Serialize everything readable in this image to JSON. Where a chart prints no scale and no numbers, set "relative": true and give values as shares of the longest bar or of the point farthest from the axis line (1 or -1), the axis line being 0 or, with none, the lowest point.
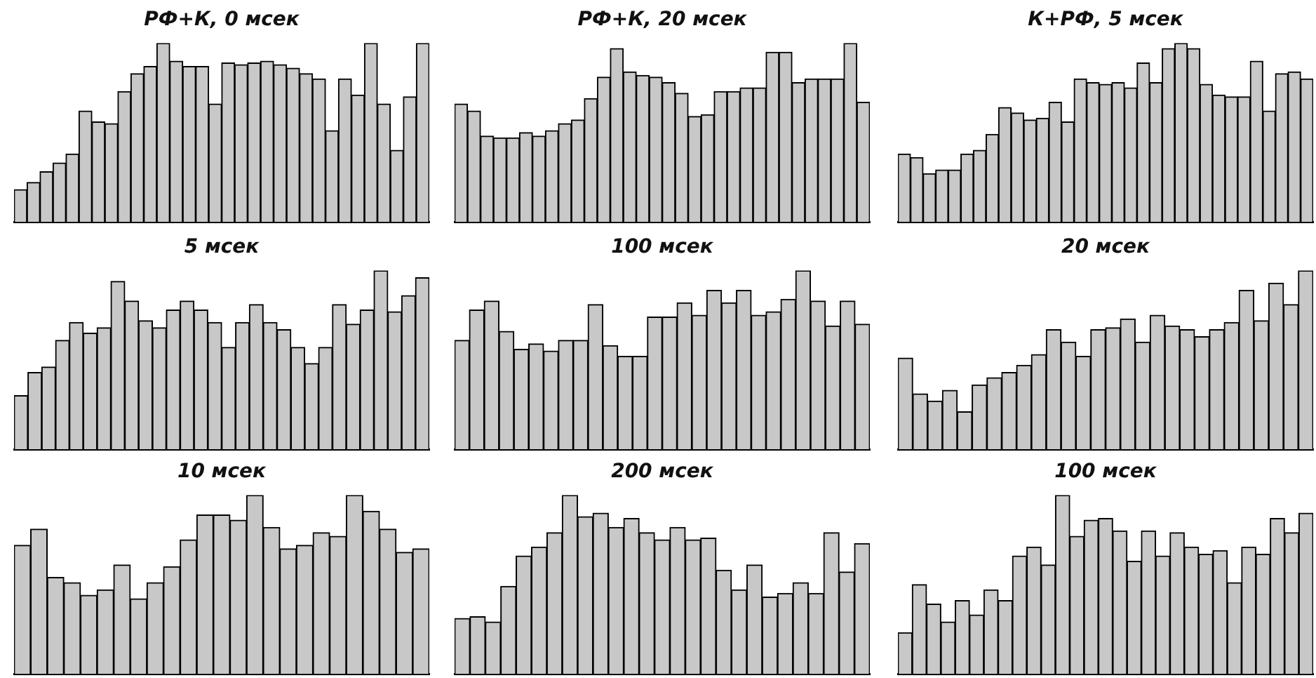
{
  "chart_data": [
    {
      "type": "bar",
      "title": "РФ+К, 0 мсек",
      "relative": true,
      "color": "#c8c8c8",
      "categories": [
        null,
        null,
        null,
        null,
        null,
        null,
        null,
        null,
        null,
        null,
        null,
        null,
        null,
        null,
        null,
        null,
        null,
        null,
        null,
        null,
        null,
        null,
        null,
        null,
        null,
        null,
        null,
        null,
        null,
        null,
        null,
        null
      ],
      "values": [
        0.18,
        0.22,
        0.28,
        0.33,
        0.38,
        0.62,
        0.56,
        0.55,
        0.73,
        0.83,
        0.87,
        1.0,
        0.9,
        0.87,
        0.87,
        0.66,
        0.89,
        0.88,
        0.89,
        0.9,
        0.88,
        0.86,
        0.83,
        0.8,
        0.51,
        0.8,
        0.71,
        1.0,
        0.66,
        0.4,
        0.7,
        1.0
      ]
    },
    {
      "type": "bar",
      "title": "РФ+К, 20 мсек",
      "relative": true,
      "color": "#c8c8c8",
      "categories": [
        null,
        null,
        null,
        null,
        null,
        null,
        null,
        null,
        null,
        null,
        null,
        null,
        null,
        null,
        null,
        null,
        null,
        null,
        null,
        null,
        null,
        null,
        null,
        null,
        null,
        null,
        null,
        null,
        null,
        null,
        null,
        null
      ],
      "values": [
        0.66,
        0.62,
        0.48,
        0.47,
        0.47,
        0.5,
        0.48,
        0.51,
        0.55,
        0.57,
        0.69,
        0.81,
        0.97,
        0.84,
        0.82,
        0.81,
        0.78,
        0.72,
        0.59,
        0.6,
        0.73,
        0.73,
        0.75,
        0.75,
        0.95,
        0.95,
        0.78,
        0.8,
        0.8,
        0.8,
        1.0,
        0.67
      ]
    },
    {
      "type": "bar",
      "title": "К+РФ, 5 мсек",
      "relative": true,
      "color": "#c8c8c8",
      "categories": [
        null,
        null,
        null,
        null,
        null,
        null,
        null,
        null,
        null,
        null,
        null,
        null,
        null,
        null,
        null,
        null,
        null,
        null,
        null,
        null,
        null,
        null,
        null,
        null,
        null,
        null,
        null,
        null,
        null,
        null,
        null,
        null,
        null
      ],
      "values": [
        0.38,
        0.36,
        0.27,
        0.29,
        0.29,
        0.38,
        0.4,
        0.49,
        0.64,
        0.61,
        0.57,
        0.58,
        0.67,
        0.56,
        0.8,
        0.78,
        0.77,
        0.78,
        0.75,
        0.89,
        0.78,
        0.97,
        1.0,
        0.97,
        0.77,
        0.71,
        0.7,
        0.7,
        0.9,
        0.62,
        0.83,
        0.84,
        0.8
      ]
    },
    {
      "type": "bar",
      "title": "5 мсек",
      "relative": true,
      "color": "#c8c8c8",
      "categories": [
        null,
        null,
        null,
        null,
        null,
        null,
        null,
        null,
        null,
        null,
        null,
        null,
        null,
        null,
        null,
        null,
        null,
        null,
        null,
        null,
        null,
        null,
        null,
        null,
        null,
        null,
        null,
        null,
        null,
        null
      ],
      "values": [
        0.3,
        0.43,
        0.46,
        0.61,
        0.71,
        0.65,
        0.68,
        0.94,
        0.83,
        0.72,
        0.68,
        0.78,
        0.83,
        0.78,
        0.71,
        0.57,
        0.71,
        0.81,
        0.71,
        0.67,
        0.57,
        0.48,
        0.57,
        0.81,
        0.7,
        0.78,
        1.0,
        0.77,
        0.86,
        0.96
      ]
    },
    {
      "type": "bar",
      "title": "100 мсек",
      "relative": true,
      "color": "#c8c8c8",
      "categories": [
        null,
        null,
        null,
        null,
        null,
        null,
        null,
        null,
        null,
        null,
        null,
        null,
        null,
        null,
        null,
        null,
        null,
        null,
        null,
        null,
        null,
        null,
        null,
        null,
        null,
        null,
        null,
        null
      ],
      "values": [
        0.61,
        0.78,
        0.83,
        0.66,
        0.56,
        0.59,
        0.55,
        0.61,
        0.61,
        0.81,
        0.58,
        0.52,
        0.52,
        0.74,
        0.74,
        0.82,
        0.75,
        0.89,
        0.82,
        0.89,
        0.75,
        0.77,
        0.84,
        1.0,
        0.83,
        0.69,
        0.83,
        0.7
      ]
    },
    {
      "type": "bar",
      "title": "20 мсек",
      "relative": true,
      "color": "#c8c8c8",
      "categories": [
        null,
        null,
        null,
        null,
        null,
        null,
        null,
        null,
        null,
        null,
        null,
        null,
        null,
        null,
        null,
        null,
        null,
        null,
        null,
        null,
        null,
        null,
        null,
        null,
        null,
        null,
        null,
        null
      ],
      "values": [
        0.51,
        0.31,
        0.27,
        0.33,
        0.21,
        0.36,
        0.4,
        0.43,
        0.47,
        0.53,
        0.67,
        0.6,
        0.52,
        0.67,
        0.68,
        0.73,
        0.6,
        0.75,
        0.69,
        0.67,
        0.63,
        0.67,
        0.71,
        0.89,
        0.72,
        0.93,
        0.81,
        1.0
      ]
    },
    {
      "type": "bar",
      "title": "10 мсек",
      "relative": true,
      "color": "#c8c8c8",
      "categories": [
        null,
        null,
        null,
        null,
        null,
        null,
        null,
        null,
        null,
        null,
        null,
        null,
        null,
        null,
        null,
        null,
        null,
        null,
        null,
        null,
        null,
        null,
        null,
        null,
        null
      ],
      "values": [
        0.72,
        0.81,
        0.54,
        0.51,
        0.44,
        0.47,
        0.61,
        0.42,
        0.51,
        0.6,
        0.75,
        0.89,
        0.89,
        0.86,
        1.0,
        0.82,
        0.7,
        0.72,
        0.79,
        0.77,
        1.0,
        0.91,
        0.81,
        0.68,
        0.7
      ]
    },
    {
      "type": "bar",
      "title": "200 мсек",
      "relative": true,
      "color": "#c8c8c8",
      "categories": [
        null,
        null,
        null,
        null,
        null,
        null,
        null,
        null,
        null,
        null,
        null,
        null,
        null,
        null,
        null,
        null,
        null,
        null,
        null,
        null,
        null,
        null,
        null,
        null,
        null,
        null,
        null
      ],
      "values": [
        0.31,
        0.32,
        0.29,
        0.49,
        0.66,
        0.71,
        0.79,
        1.0,
        0.88,
        0.9,
        0.82,
        0.87,
        0.79,
        0.75,
        0.82,
        0.75,
        0.76,
        0.58,
        0.47,
        0.61,
        0.43,
        0.45,
        0.51,
        0.45,
        0.79,
        0.57,
        0.73
      ]
    },
    {
      "type": "bar",
      "title": "100 мсек",
      "relative": true,
      "color": "#c8c8c8",
      "categories": [
        null,
        null,
        null,
        null,
        null,
        null,
        null,
        null,
        null,
        null,
        null,
        null,
        null,
        null,
        null,
        null,
        null,
        null,
        null,
        null,
        null,
        null,
        null,
        null,
        null,
        null,
        null,
        null,
        null
      ],
      "values": [
        0.23,
        0.5,
        0.39,
        0.29,
        0.41,
        0.33,
        0.47,
        0.41,
        0.66,
        0.71,
        0.61,
        1.0,
        0.77,
        0.86,
        0.87,
        0.8,
        0.63,
        0.8,
        0.66,
        0.79,
        0.71,
        0.67,
        0.69,
        0.51,
        0.71,
        0.67,
        0.87,
        0.79,
        0.9
      ]
    }
  ]
}
